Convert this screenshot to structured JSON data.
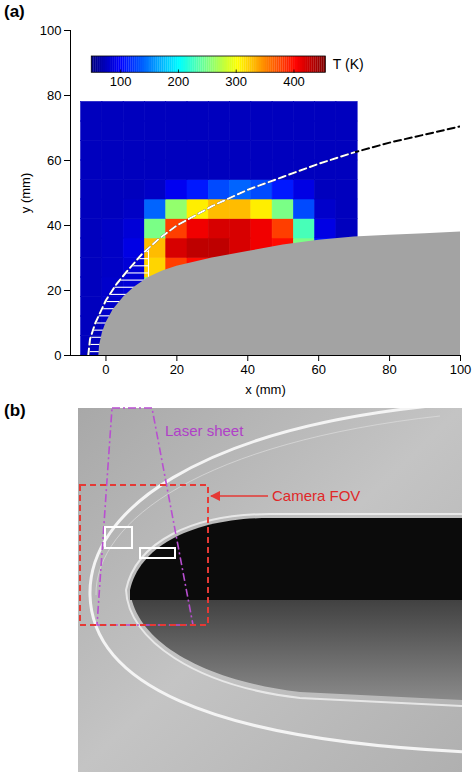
{
  "chart_data": [
    {
      "type": "heatmap",
      "panel_label": "(a)",
      "xlabel": "x (mm)",
      "ylabel": "y (mm)",
      "xlim": [
        -10,
        100
      ],
      "ylim": [
        0,
        100
      ],
      "xticks": [
        0,
        20,
        40,
        60,
        80,
        100
      ],
      "yticks": [
        0,
        20,
        40,
        60,
        80,
        100
      ],
      "cells": {
        "x": [
          -4,
          2,
          8,
          14,
          20,
          26,
          32,
          38,
          44,
          50,
          56,
          62,
          68
        ],
        "y": [
          3,
          9,
          15,
          21,
          27,
          33,
          39,
          45,
          51,
          57,
          63,
          69,
          75
        ],
        "T": [
          [
            75,
            78,
            null,
            null,
            null,
            null,
            null,
            null,
            null,
            null,
            null,
            null,
            null
          ],
          [
            75,
            80,
            null,
            null,
            null,
            null,
            null,
            null,
            null,
            null,
            null,
            null,
            null
          ],
          [
            75,
            80,
            null,
            null,
            null,
            null,
            null,
            null,
            null,
            null,
            null,
            null,
            null
          ],
          [
            75,
            80,
            85,
            250,
            null,
            null,
            null,
            null,
            null,
            null,
            null,
            null,
            null
          ],
          [
            75,
            78,
            85,
            320,
            380,
            400,
            400,
            null,
            null,
            null,
            null,
            null,
            null
          ],
          [
            75,
            78,
            90,
            330,
            420,
            430,
            430,
            420,
            410,
            400,
            250,
            110,
            80
          ],
          [
            75,
            78,
            85,
            250,
            380,
            410,
            420,
            420,
            410,
            380,
            230,
            90,
            75
          ],
          [
            75,
            75,
            78,
            140,
            260,
            310,
            330,
            330,
            310,
            250,
            130,
            80,
            75
          ],
          [
            75,
            75,
            75,
            78,
            95,
            110,
            130,
            140,
            130,
            110,
            90,
            75,
            75
          ],
          [
            75,
            75,
            75,
            75,
            75,
            75,
            75,
            75,
            75,
            75,
            75,
            75,
            75
          ],
          [
            75,
            75,
            75,
            75,
            75,
            75,
            75,
            75,
            75,
            75,
            75,
            75,
            75
          ],
          [
            75,
            75,
            75,
            75,
            75,
            75,
            75,
            75,
            75,
            75,
            75,
            75,
            75
          ],
          [
            75,
            75,
            75,
            75,
            75,
            75,
            75,
            75,
            75,
            75,
            75,
            75,
            75
          ]
        ]
      },
      "colorbar": {
        "label": "T (K)",
        "range": [
          50,
          455
        ],
        "ticks": [
          100,
          200,
          300,
          400
        ]
      },
      "body": {
        "x": [
          -2,
          -1.8,
          -1,
          0,
          2,
          5,
          8,
          12,
          16,
          20,
          30,
          40,
          50,
          60,
          70,
          80,
          90,
          100
        ],
        "y": [
          0,
          3,
          7,
          10,
          14,
          18,
          21,
          24,
          26,
          27.5,
          30,
          32,
          34,
          35.5,
          36.5,
          37,
          37.5,
          38
        ]
      },
      "shock": {
        "x": [
          -5,
          -4.5,
          -3,
          0,
          3,
          6,
          10,
          15,
          20,
          30,
          40,
          50,
          60,
          70,
          80,
          90,
          100
        ],
        "y": [
          0,
          5,
          10,
          17,
          22,
          26,
          31,
          36,
          40,
          46,
          51,
          55,
          59,
          62.5,
          65.5,
          68,
          70.5
        ],
        "line_style": "dashed"
      },
      "hatch_xmax": 12
    }
  ],
  "photo": {
    "panel_label": "(b)",
    "annotations": {
      "laser_sheet": "Laser sheet",
      "camera_fov": "Camera FOV"
    }
  }
}
